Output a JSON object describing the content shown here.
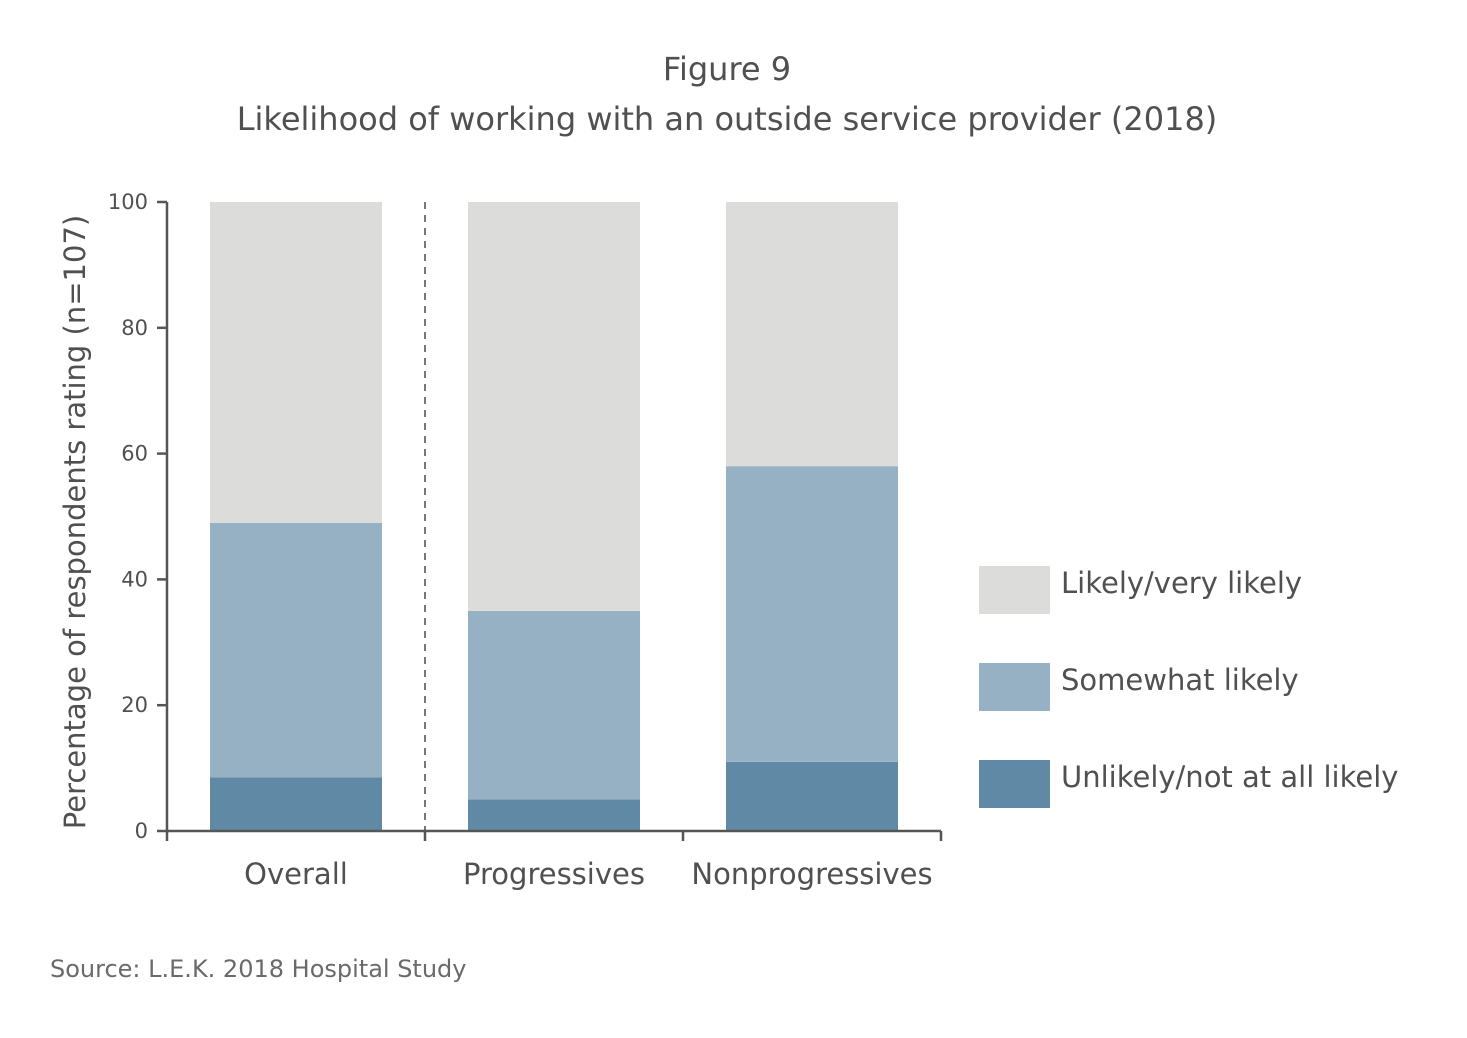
{
  "figure_label": "Figure 9",
  "source": "Source: L.E.K. 2018 Hospital Study",
  "colors": {
    "likely": "#dcdcdb",
    "somewhat": "#97b1c4",
    "unlikely": "#5f89a4",
    "axis": "#555555",
    "text": "#505050"
  },
  "chart_data": {
    "type": "bar",
    "stacked": true,
    "title": "Likelihood of working with an outside service provider (2018)",
    "xlabel": "",
    "ylabel": "Percentage of respondents rating (n=107)",
    "ylim": [
      0,
      100
    ],
    "yticks": [
      0,
      20,
      40,
      60,
      80,
      100
    ],
    "categories": [
      "Overall",
      "Progressives",
      "Nonprogressives"
    ],
    "series": [
      {
        "name": "Unlikely/not at all likely",
        "values": [
          8.5,
          5,
          11
        ]
      },
      {
        "name": "Somewhat likely",
        "values": [
          40.5,
          30,
          47
        ]
      },
      {
        "name": "Likely/very likely",
        "values": [
          51,
          65,
          42
        ]
      }
    ],
    "legend_order": [
      "Likely/very likely",
      "Somewhat likely",
      "Unlikely/not at all likely"
    ],
    "legend_position": "right",
    "grid": false,
    "separator_after_category": "Overall"
  }
}
